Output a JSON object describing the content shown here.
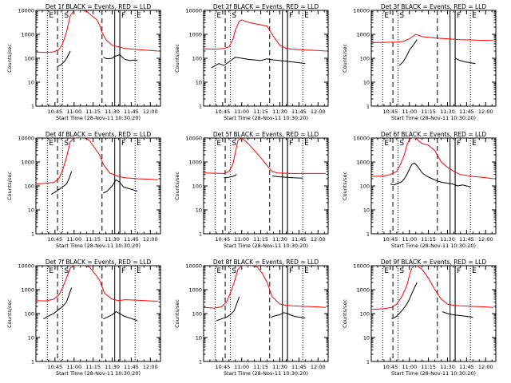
{
  "chart_data": {
    "type": "line",
    "figure_title": "",
    "scale": "log-y",
    "colors": {
      "events": "#000000",
      "lld": "#ff0000",
      "frame": "#000000"
    },
    "x_ticks": [
      "10:45",
      "11:00",
      "11:15",
      "11:30",
      "11:45",
      "12:00"
    ],
    "x_tick_minutes": [
      45,
      60,
      75,
      90,
      105,
      120
    ],
    "xlim_minutes": [
      30,
      128
    ],
    "y_ticks": [
      "1",
      "10",
      "100",
      "1000",
      "10000"
    ],
    "ylim": [
      1,
      10000
    ],
    "ylabel": "Counts/sec",
    "xlabel": "Start Time (28-Nov-11 10:30:20)",
    "marker_lines": [
      {
        "label": "E",
        "minute": 39,
        "style": "dotted"
      },
      {
        "label": "S",
        "minute": 51,
        "style": "dotted"
      },
      {
        "label": "F",
        "minute": 96,
        "style": "solid"
      },
      {
        "label": "E",
        "minute": 108,
        "style": "dotted"
      }
    ],
    "dashed_lines_minutes": [
      47,
      82
    ],
    "solid_block_minutes": [
      92,
      96
    ],
    "panels": [
      {
        "title": "Det 1f BLACK = Events, RED = LLD",
        "series": [
          {
            "name": "Events",
            "color": "#000000",
            "x": [
              47,
              50,
              53,
              55,
              57
            ],
            "y": [
              45,
              55,
              80,
              120,
              200
            ]
          },
          {
            "name": "Events",
            "color": "#000000",
            "x": [
              83,
              86,
              90,
              92,
              96,
              98,
              100,
              104,
              108,
              110
            ],
            "y": [
              110,
              95,
              100,
              120,
              140,
              110,
              90,
              80,
              85,
              80
            ]
          },
          {
            "name": "LLD",
            "color": "#ff0000",
            "x": [
              30,
              38,
              44,
              48,
              51,
              54,
              57,
              60,
              64,
              66,
              70,
              74,
              78,
              80,
              82,
              85,
              90,
              95,
              100,
              110,
              120,
              126
            ],
            "y": [
              180,
              175,
              185,
              230,
              400,
              1200,
              6000,
              10000,
              10000,
              10000,
              9000,
              6000,
              4000,
              2500,
              1200,
              600,
              350,
              300,
              260,
              230,
              210,
              200
            ]
          }
        ]
      },
      {
        "title": "Det 2f BLACK = Events, RED = LLD",
        "series": [
          {
            "name": "Events",
            "color": "#000000",
            "x": [
              36,
              42,
              46,
              49,
              52,
              55,
              60,
              65,
              70,
              75,
              80,
              85,
              90,
              95,
              100,
              105,
              110
            ],
            "y": [
              40,
              60,
              50,
              65,
              85,
              110,
              100,
              90,
              85,
              80,
              95,
              85,
              80,
              75,
              70,
              65,
              60
            ]
          },
          {
            "name": "LLD",
            "color": "#ff0000",
            "x": [
              30,
              40,
              46,
              50,
              53,
              55,
              58,
              60,
              65,
              70,
              80,
              85,
              90,
              95,
              100,
              110,
              120,
              126
            ],
            "y": [
              250,
              240,
              260,
              300,
              600,
              1500,
              3500,
              4000,
              3200,
              2800,
              2200,
              800,
              350,
              260,
              240,
              220,
              210,
              200
            ]
          }
        ]
      },
      {
        "title": "Det 3f BLACK = Events, RED = LLD",
        "series": [
          {
            "name": "Events",
            "color": "#000000",
            "x": [
              52,
              55,
              58,
              60,
              63,
              66
            ],
            "y": [
              50,
              70,
              130,
              220,
              350,
              600
            ]
          },
          {
            "name": "Events",
            "color": "#000000",
            "x": [
              96,
              100,
              104,
              108,
              112
            ],
            "y": [
              100,
              80,
              70,
              65,
              60
            ]
          },
          {
            "name": "LLD",
            "color": "#ff0000",
            "x": [
              30,
              40,
              50,
              55,
              60,
              65,
              70,
              80,
              90,
              100,
              110,
              120,
              126
            ],
            "y": [
              450,
              460,
              470,
              500,
              650,
              1000,
              800,
              700,
              650,
              600,
              580,
              560,
              550
            ]
          }
        ]
      },
      {
        "title": "Det 4f BLACK = Events, RED = LLD",
        "series": [
          {
            "name": "Events",
            "color": "#000000",
            "x": [
              42,
              45,
              48,
              51,
              54,
              56,
              58
            ],
            "y": [
              45,
              55,
              70,
              90,
              120,
              200,
              400
            ]
          },
          {
            "name": "Events",
            "color": "#000000",
            "x": [
              83,
              86,
              90,
              93,
              96,
              99,
              102,
              106,
              110
            ],
            "y": [
              50,
              60,
              100,
              180,
              140,
              90,
              80,
              70,
              60
            ]
          },
          {
            "name": "LLD",
            "color": "#ff0000",
            "x": [
              30,
              38,
              44,
              48,
              51,
              54,
              57,
              60,
              64,
              68,
              72,
              76,
              80,
              83,
              88,
              95,
              100,
              110,
              120,
              126
            ],
            "y": [
              120,
              130,
              140,
              200,
              450,
              1500,
              7000,
              10000,
              10000,
              10000,
              8000,
              4000,
              2000,
              800,
              350,
              250,
              220,
              200,
              190,
              180
            ]
          }
        ]
      },
      {
        "title": "Det 5f BLACK = Events, RED = LLD",
        "series": [
          {
            "name": "Events",
            "color": "#000000",
            "x": [
              46,
              50,
              53,
              56
            ],
            "y": [
              220,
              230,
              250,
              300
            ]
          },
          {
            "name": "Events",
            "color": "#000000",
            "x": [
              84,
              90,
              95,
              100,
              108
            ],
            "y": [
              260,
              240,
              230,
              220,
              210
            ]
          },
          {
            "name": "LLD",
            "color": "#ff0000",
            "x": [
              30,
              40,
              46,
              50,
              53,
              55,
              57,
              60,
              65,
              70,
              75,
              80,
              84,
              88,
              95,
              100,
              110,
              120,
              126
            ],
            "y": [
              350,
              340,
              330,
              400,
              800,
              2500,
              8000,
              10000,
              6000,
              3000,
              1500,
              700,
              400,
              350,
              340,
              330,
              330,
              330,
              330
            ]
          }
        ]
      },
      {
        "title": "Det 6f BLACK = Events, RED = LLD",
        "series": [
          {
            "name": "Events",
            "color": "#000000",
            "x": [
              45,
              48,
              51,
              54,
              56,
              58,
              60,
              62,
              64,
              66,
              68,
              70,
              74,
              78,
              82,
              86,
              90,
              94,
              98,
              102,
              108
            ],
            "y": [
              120,
              110,
              130,
              150,
              200,
              300,
              500,
              800,
              900,
              700,
              500,
              350,
              250,
              200,
              160,
              140,
              130,
              120,
              100,
              110,
              90
            ]
          },
          {
            "name": "LLD",
            "color": "#ff0000",
            "x": [
              30,
              40,
              45,
              50,
              53,
              56,
              58,
              60,
              62,
              64,
              66,
              68,
              70,
              72,
              75,
              80,
              85,
              90,
              95,
              100,
              110,
              120,
              126
            ],
            "y": [
              250,
              260,
              300,
              400,
              800,
              2000,
              5000,
              9000,
              10000,
              10000,
              9000,
              7000,
              6000,
              5500,
              5000,
              3000,
              1000,
              600,
              400,
              300,
              250,
              220,
              200
            ]
          }
        ]
      },
      {
        "title": "Det 7f BLACK = Events, RED = LLD",
        "series": [
          {
            "name": "Events",
            "color": "#000000",
            "x": [
              36,
              40,
              44,
              48,
              51,
              54,
              56,
              58
            ],
            "y": [
              60,
              80,
              100,
              150,
              200,
              300,
              600,
              1200
            ]
          },
          {
            "name": "Events",
            "color": "#000000",
            "x": [
              83,
              86,
              90,
              93,
              96,
              99,
              102,
              106,
              110
            ],
            "y": [
              60,
              70,
              90,
              120,
              100,
              80,
              70,
              60,
              50
            ]
          },
          {
            "name": "LLD",
            "color": "#ff0000",
            "x": [
              30,
              38,
              44,
              48,
              51,
              54,
              57,
              60,
              64,
              68,
              72,
              76,
              80,
              84,
              90,
              95,
              100,
              110,
              120,
              126
            ],
            "y": [
              350,
              340,
              400,
              600,
              1200,
              3000,
              8000,
              10000,
              10000,
              10000,
              9000,
              5000,
              2500,
              700,
              400,
              350,
              380,
              360,
              340,
              330
            ]
          }
        ]
      },
      {
        "title": "Det 8f BLACK = Events, RED = LLD",
        "series": [
          {
            "name": "Events",
            "color": "#000000",
            "x": [
              40,
              44,
              48,
              51,
              54,
              56,
              58
            ],
            "y": [
              50,
              60,
              70,
              90,
              130,
              250,
              500
            ]
          },
          {
            "name": "Events",
            "color": "#000000",
            "x": [
              83,
              86,
              90,
              93,
              96,
              99,
              102,
              106,
              110
            ],
            "y": [
              70,
              80,
              90,
              110,
              100,
              85,
              75,
              70,
              65
            ]
          },
          {
            "name": "LLD",
            "color": "#ff0000",
            "x": [
              30,
              38,
              44,
              48,
              51,
              54,
              57,
              60,
              64,
              68,
              72,
              76,
              80,
              84,
              90,
              95,
              100,
              110,
              120,
              126
            ],
            "y": [
              180,
              170,
              190,
              300,
              700,
              2000,
              7000,
              10000,
              10000,
              10000,
              9000,
              5000,
              2000,
              500,
              250,
              220,
              210,
              200,
              190,
              180
            ]
          }
        ]
      },
      {
        "title": "Det 9f BLACK = Events, RED = LLD",
        "series": [
          {
            "name": "Events",
            "color": "#000000",
            "x": [
              46,
              49,
              52,
              55,
              58,
              60,
              62,
              64,
              66
            ],
            "y": [
              60,
              70,
              100,
              150,
              250,
              400,
              700,
              1200,
              2000
            ]
          },
          {
            "name": "Events",
            "color": "#000000",
            "x": [
              86,
              90,
              94,
              98,
              102,
              106,
              110
            ],
            "y": [
              120,
              100,
              90,
              85,
              80,
              75,
              70
            ]
          },
          {
            "name": "LLD",
            "color": "#ff0000",
            "x": [
              30,
              40,
              46,
              50,
              54,
              58,
              60,
              62,
              64,
              66,
              70,
              75,
              80,
              85,
              90,
              95,
              100,
              110,
              120,
              126
            ],
            "y": [
              150,
              160,
              180,
              250,
              500,
              1500,
              4000,
              8000,
              10000,
              10000,
              7000,
              3000,
              1000,
              400,
              250,
              220,
              210,
              200,
              190,
              180
            ]
          }
        ]
      }
    ]
  }
}
